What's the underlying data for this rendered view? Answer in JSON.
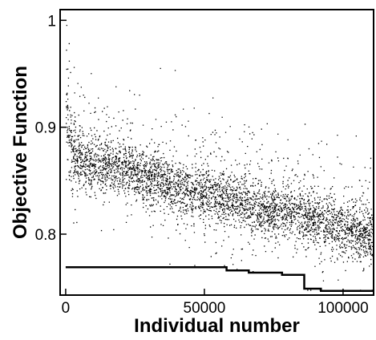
{
  "chart_data": {
    "type": "scatter",
    "title": "",
    "xlabel": "Individual number",
    "ylabel": "Objective Function",
    "xlim": [
      -2000,
      111000
    ],
    "ylim": [
      0.743,
      1.01
    ],
    "x_ticks": [
      0,
      50000,
      100000
    ],
    "x_tick_labels": [
      "0",
      "50000",
      "100000"
    ],
    "y_ticks": [
      0.8,
      0.9,
      1.0
    ],
    "y_tick_labels": [
      "0.8",
      "0.9",
      "1"
    ],
    "grid": false,
    "legend": "none",
    "marker_color": "#000000",
    "series": [
      {
        "description_free": true,
        "points_trend": {
          "x": [
            0,
            500,
            2000,
            5000,
            10000,
            20000,
            30000,
            40000,
            50000,
            60000,
            70000,
            80000,
            90000,
            100000,
            110000
          ],
          "y": [
            0.9,
            0.89,
            0.875,
            0.868,
            0.865,
            0.862,
            0.852,
            0.845,
            0.838,
            0.832,
            0.826,
            0.82,
            0.812,
            0.806,
            0.798
          ]
        },
        "point_count": 110000
      }
    ],
    "best_so_far_line": {
      "x": [
        0,
        58000,
        58000,
        66000,
        66000,
        78000,
        78000,
        86000,
        86000,
        92000,
        92000,
        111000
      ],
      "y": [
        0.769,
        0.769,
        0.766,
        0.766,
        0.764,
        0.764,
        0.762,
        0.762,
        0.749,
        0.749,
        0.747,
        0.747
      ]
    }
  }
}
